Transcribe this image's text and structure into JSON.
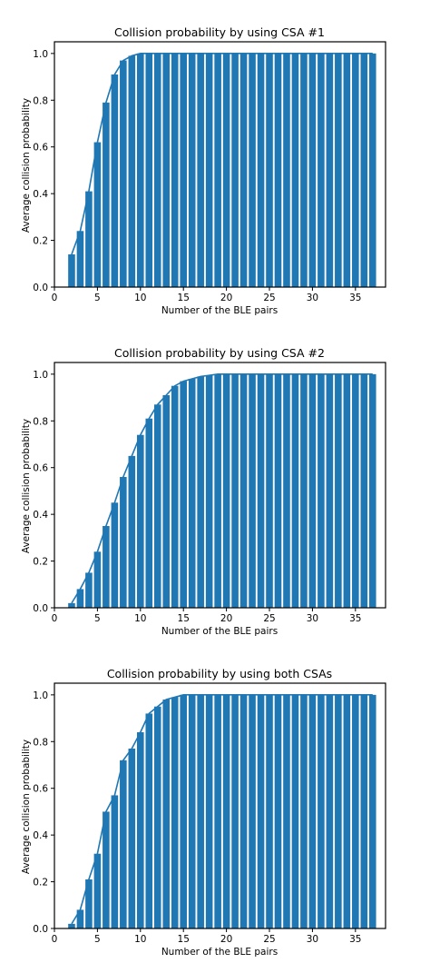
{
  "colors": {
    "bar": "#1f77b4",
    "line": "#1f77b4",
    "axis": "#000000"
  },
  "chart_data": [
    {
      "type": "bar",
      "title": "Collision probability by using CSA #1",
      "xlabel": "Number of the BLE pairs",
      "ylabel": "Average collision probability",
      "xlim": [
        0,
        38.5
      ],
      "ylim": [
        0,
        1.05
      ],
      "xticks": [
        0,
        5,
        10,
        15,
        20,
        25,
        30,
        35
      ],
      "yticks": [
        0.0,
        0.2,
        0.4,
        0.6,
        0.8,
        1.0
      ],
      "x": [
        2,
        3,
        4,
        5,
        6,
        7,
        8,
        9,
        10,
        11,
        12,
        13,
        14,
        15,
        16,
        17,
        18,
        19,
        20,
        21,
        22,
        23,
        24,
        25,
        26,
        27,
        28,
        29,
        30,
        31,
        32,
        33,
        34,
        35,
        36,
        37
      ],
      "values": [
        0.14,
        0.24,
        0.41,
        0.62,
        0.79,
        0.91,
        0.97,
        0.99,
        1.0,
        1.0,
        1.0,
        1.0,
        1.0,
        1.0,
        1.0,
        1.0,
        1.0,
        1.0,
        1.0,
        1.0,
        1.0,
        1.0,
        1.0,
        1.0,
        1.0,
        1.0,
        1.0,
        1.0,
        1.0,
        1.0,
        1.0,
        1.0,
        1.0,
        1.0,
        1.0,
        1.0
      ],
      "line_overlay": true,
      "grid": false
    },
    {
      "type": "bar",
      "title": "Collision probability by using CSA #2",
      "xlabel": "Number of the BLE pairs",
      "ylabel": "Average collision probability",
      "xlim": [
        0,
        38.5
      ],
      "ylim": [
        0,
        1.05
      ],
      "xticks": [
        0,
        5,
        10,
        15,
        20,
        25,
        30,
        35
      ],
      "yticks": [
        0.0,
        0.2,
        0.4,
        0.6,
        0.8,
        1.0
      ],
      "x": [
        2,
        3,
        4,
        5,
        6,
        7,
        8,
        9,
        10,
        11,
        12,
        13,
        14,
        15,
        16,
        17,
        18,
        19,
        20,
        21,
        22,
        23,
        24,
        25,
        26,
        27,
        28,
        29,
        30,
        31,
        32,
        33,
        34,
        35,
        36,
        37
      ],
      "values": [
        0.02,
        0.08,
        0.15,
        0.24,
        0.35,
        0.45,
        0.56,
        0.65,
        0.74,
        0.81,
        0.87,
        0.91,
        0.95,
        0.97,
        0.98,
        0.99,
        0.995,
        1.0,
        1.0,
        1.0,
        1.0,
        1.0,
        1.0,
        1.0,
        1.0,
        1.0,
        1.0,
        1.0,
        1.0,
        1.0,
        1.0,
        1.0,
        1.0,
        1.0,
        1.0,
        1.0
      ],
      "line_overlay": true,
      "grid": false
    },
    {
      "type": "bar",
      "title": "Collision probability by using both CSAs",
      "xlabel": "Number of the BLE pairs",
      "ylabel": "Average collision probability",
      "xlim": [
        0,
        38.5
      ],
      "ylim": [
        0,
        1.05
      ],
      "xticks": [
        0,
        5,
        10,
        15,
        20,
        25,
        30,
        35
      ],
      "yticks": [
        0.0,
        0.2,
        0.4,
        0.6,
        0.8,
        1.0
      ],
      "x": [
        2,
        3,
        4,
        5,
        6,
        7,
        8,
        9,
        10,
        11,
        12,
        13,
        14,
        15,
        16,
        17,
        18,
        19,
        20,
        21,
        22,
        23,
        24,
        25,
        26,
        27,
        28,
        29,
        30,
        31,
        32,
        33,
        34,
        35,
        36,
        37
      ],
      "values": [
        0.02,
        0.08,
        0.21,
        0.32,
        0.5,
        0.57,
        0.72,
        0.77,
        0.84,
        0.92,
        0.95,
        0.98,
        0.99,
        1.0,
        1.0,
        1.0,
        1.0,
        1.0,
        1.0,
        1.0,
        1.0,
        1.0,
        1.0,
        1.0,
        1.0,
        1.0,
        1.0,
        1.0,
        1.0,
        1.0,
        1.0,
        1.0,
        1.0,
        1.0,
        1.0,
        1.0
      ],
      "line_overlay": true,
      "grid": false
    }
  ]
}
